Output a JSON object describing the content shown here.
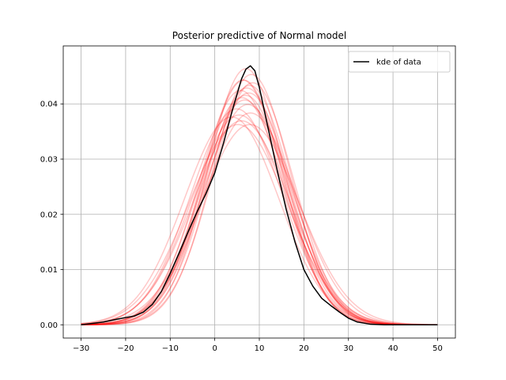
{
  "chart_data": {
    "type": "line",
    "title": "Posterior predictive of Normal model",
    "xlabel": "",
    "ylabel": "",
    "xlim": [
      -34,
      54
    ],
    "ylim": [
      -0.0024,
      0.0505
    ],
    "xticks": [
      -30,
      -20,
      -10,
      0,
      10,
      20,
      30,
      40,
      50
    ],
    "yticks": [
      0.0,
      0.01,
      0.02,
      0.03,
      0.04
    ],
    "ytick_labels": [
      "0.00",
      "0.01",
      "0.02",
      "0.03",
      "0.04"
    ],
    "grid": true,
    "legend": {
      "position": "upper right",
      "entries": [
        "kde of data"
      ]
    },
    "colors": {
      "kde": "#000000",
      "posterior_samples": "#ff0000",
      "grid": "#b0b0b0"
    },
    "posterior_samples_description_count": 20,
    "posterior_samples": [
      {
        "mu": 7.0,
        "sigma": 8.6
      },
      {
        "mu": 6.5,
        "sigma": 9.0
      },
      {
        "mu": 7.8,
        "sigma": 9.2
      },
      {
        "mu": 5.8,
        "sigma": 9.4
      },
      {
        "mu": 8.2,
        "sigma": 8.8
      },
      {
        "mu": 6.9,
        "sigma": 9.6
      },
      {
        "mu": 7.4,
        "sigma": 10.0
      },
      {
        "mu": 5.5,
        "sigma": 10.5
      },
      {
        "mu": 8.5,
        "sigma": 9.1
      },
      {
        "mu": 6.0,
        "sigma": 10.8
      },
      {
        "mu": 7.2,
        "sigma": 9.3
      },
      {
        "mu": 6.7,
        "sigma": 9.8
      },
      {
        "mu": 4.9,
        "sigma": 10.2
      },
      {
        "mu": 8.0,
        "sigma": 10.4
      },
      {
        "mu": 6.3,
        "sigma": 9.0
      },
      {
        "mu": 5.2,
        "sigma": 11.0
      },
      {
        "mu": 7.6,
        "sigma": 9.5
      },
      {
        "mu": 6.1,
        "sigma": 9.7
      },
      {
        "mu": 3.8,
        "sigma": 10.6
      },
      {
        "mu": 7.9,
        "sigma": 11.0
      }
    ],
    "kde_of_data": {
      "x": [
        -30,
        -25,
        -22,
        -20,
        -18,
        -16,
        -14,
        -12,
        -10,
        -8,
        -6,
        -4,
        -2,
        0,
        2,
        4,
        6,
        7,
        8,
        9,
        10,
        12,
        14,
        16,
        18,
        20,
        22,
        24,
        26,
        28,
        30,
        32,
        35,
        38,
        42,
        46,
        50
      ],
      "y": [
        0.0,
        0.0005,
        0.001,
        0.0013,
        0.0016,
        0.0023,
        0.0037,
        0.006,
        0.0093,
        0.013,
        0.0168,
        0.0204,
        0.0237,
        0.0275,
        0.033,
        0.039,
        0.0445,
        0.0463,
        0.0469,
        0.046,
        0.043,
        0.0355,
        0.028,
        0.021,
        0.015,
        0.01,
        0.007,
        0.0048,
        0.0035,
        0.0023,
        0.0012,
        0.0005,
        0.0001,
        0.0,
        0.0,
        0.0,
        0.0
      ]
    }
  }
}
